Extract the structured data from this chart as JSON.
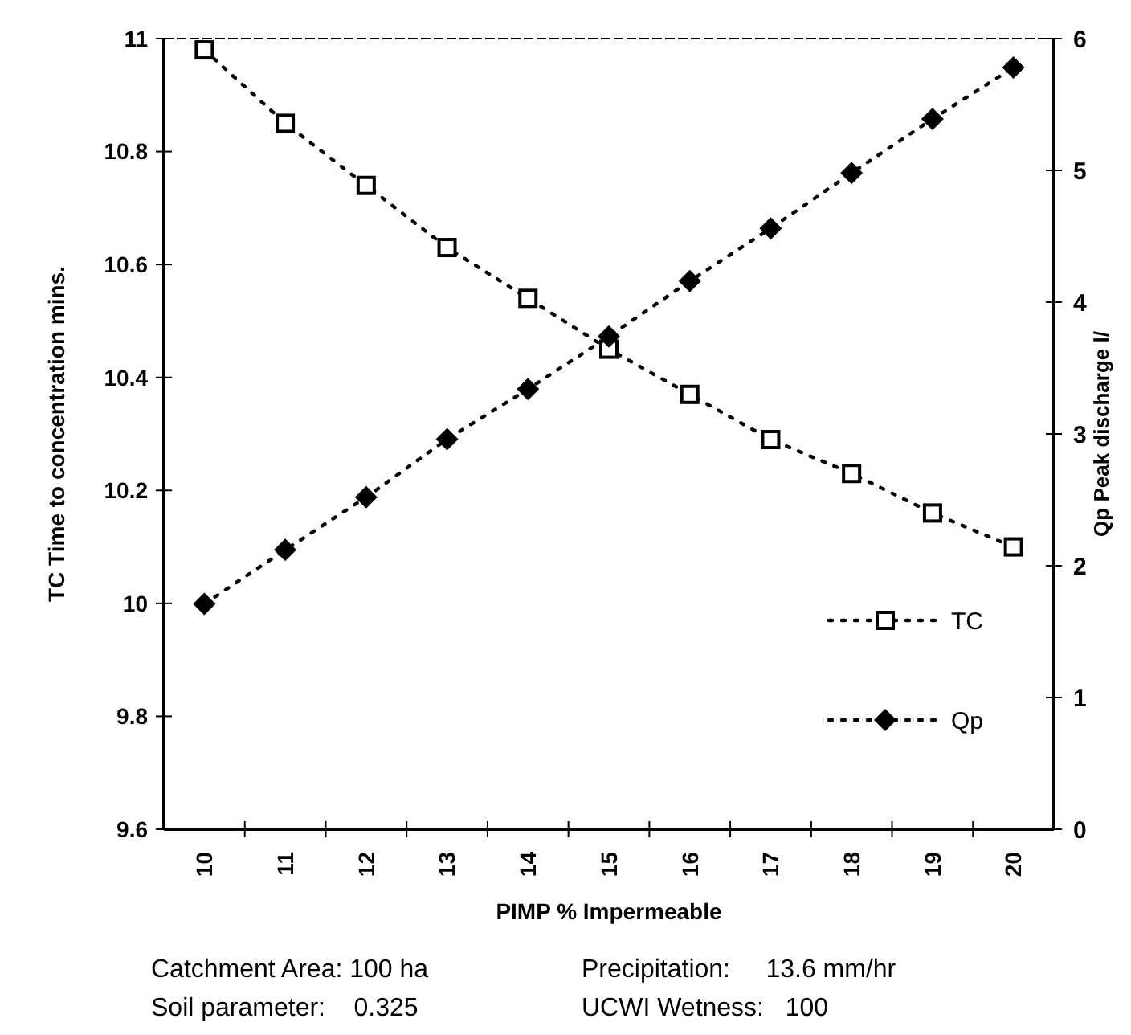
{
  "chart_data": {
    "type": "line",
    "xlabel": "PIMP % Impermeable",
    "ylabel": "TC Time to concentration mins.",
    "y2label": "Qp Peak discharge l/",
    "categories": [
      "10",
      "11",
      "12",
      "13",
      "14",
      "15",
      "16",
      "17",
      "18",
      "19",
      "20"
    ],
    "series": [
      {
        "name": "TC",
        "color": "#000000",
        "marker": "square",
        "values": [
          10.98,
          10.85,
          10.74,
          10.63,
          10.54,
          10.45,
          10.37,
          10.29,
          10.23,
          10.16,
          10.1
        ]
      },
      {
        "name": "Qp",
        "color": "#000000",
        "marker": "diamond",
        "axis": "y2",
        "values": [
          1.71,
          2.12,
          2.52,
          2.96,
          3.34,
          3.74,
          4.16,
          4.56,
          4.98,
          5.39,
          5.78
        ]
      }
    ],
    "ylim": [
      9.6,
      11
    ],
    "yticks": [
      9.6,
      9.8,
      10,
      10.2,
      10.4,
      10.6,
      10.8,
      11
    ],
    "y2lim": [
      0,
      6
    ],
    "y2ticks": [
      0,
      1,
      2,
      3,
      4,
      5,
      6
    ],
    "line_style": "dotted",
    "legend": "bottom right",
    "grid": false,
    "annotations": [
      "Catchment Area: 100 ha",
      "Precipitation:     13.6 mm/hr",
      "Soil parameter:    0.325",
      "UCWI Wetness:   100"
    ]
  }
}
